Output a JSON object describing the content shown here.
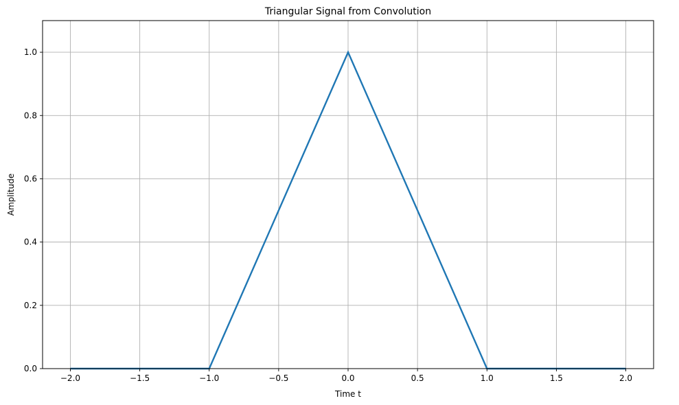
{
  "chart_data": {
    "type": "line",
    "title": "Triangular Signal from Convolution",
    "xlabel": "Time t",
    "ylabel": "Amplitude",
    "xlim": [
      -2.2,
      2.2
    ],
    "ylim": [
      0.0,
      1.1
    ],
    "xticks": [
      -2.0,
      -1.5,
      -1.0,
      -0.5,
      0.0,
      0.5,
      1.0,
      1.5,
      2.0
    ],
    "xtick_labels": [
      "−2.0",
      "−1.5",
      "−1.0",
      "−0.5",
      "0.0",
      "0.5",
      "1.0",
      "1.5",
      "2.0"
    ],
    "yticks": [
      0.0,
      0.2,
      0.4,
      0.6,
      0.8,
      1.0
    ],
    "ytick_labels": [
      "0.0",
      "0.2",
      "0.4",
      "0.6",
      "0.8",
      "1.0"
    ],
    "grid": true,
    "series": [
      {
        "color": "#1f77b4",
        "x": [
          -2.0,
          -1.0,
          0.0,
          1.0,
          2.0
        ],
        "y": [
          0.0,
          0.0,
          1.0,
          0.0,
          0.0
        ]
      }
    ]
  }
}
